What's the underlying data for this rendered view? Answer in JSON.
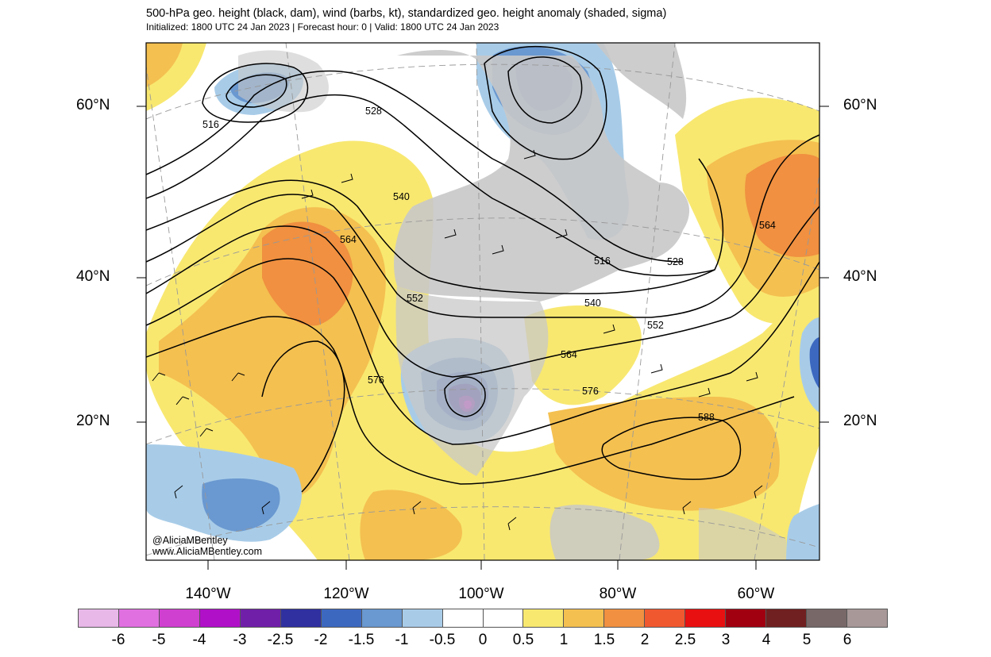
{
  "title": {
    "line1": "500-hPa geo. height (black, dam), wind (barbs, kt), standardized geo. height anomaly (shaded, sigma)",
    "line2": "Initialized: 1800 UTC 24 Jan 2023 | Forecast hour: 0 | Valid: 1800 UTC 24 Jan 2023"
  },
  "lat_labels": [
    "60°N",
    "40°N",
    "20°N"
  ],
  "lon_labels": [
    "140°W",
    "120°W",
    "100°W",
    "80°W",
    "60°W"
  ],
  "contour_labels": [
    "516",
    "528",
    "540",
    "564",
    "552",
    "576",
    "516",
    "528",
    "540",
    "552",
    "564",
    "576",
    "588",
    "564"
  ],
  "credit": {
    "twitter": "@AliciaMBentley",
    "website": "www.AliciaMBentley.com"
  },
  "colorbar": {
    "colors": [
      "#e8b8e8",
      "#e070e0",
      "#d040d0",
      "#b010c8",
      "#7020a8",
      "#3030a0",
      "#3c68c0",
      "#6a98d0",
      "#a8cce8",
      "#ffffff",
      "#ffffff",
      "#f8e870",
      "#f4c050",
      "#f09040",
      "#f05830",
      "#e81010",
      "#a00010",
      "#702020",
      "#786868",
      "#a89898"
    ],
    "labels": [
      "-6",
      "-5",
      "-4",
      "-3",
      "-2.5",
      "-2",
      "-1.5",
      "-1",
      "-0.5",
      "0",
      "0.5",
      "1",
      "1.5",
      "2",
      "2.5",
      "3",
      "4",
      "5",
      "6"
    ]
  }
}
